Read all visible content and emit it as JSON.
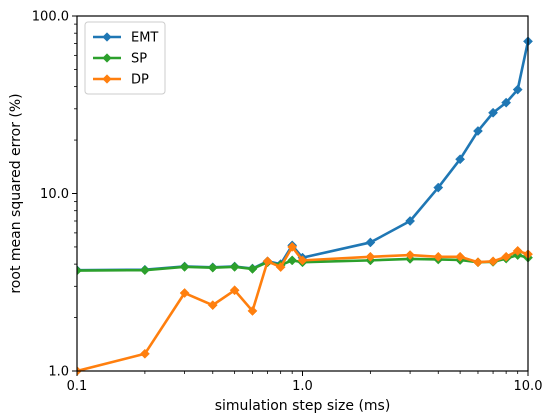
{
  "chart_data": {
    "type": "line",
    "title": "",
    "xlabel": "simulation step size (ms)",
    "ylabel": "root mean squared error (%)",
    "xscale": "log",
    "yscale": "log",
    "xlim": [
      0.1,
      10.0
    ],
    "ylim": [
      1.0,
      100.0
    ],
    "xticks": [
      0.1,
      1.0,
      10.0
    ],
    "xtick_labels": [
      "0.1",
      "1.0",
      "10.0"
    ],
    "yticks": [
      1.0,
      10.0,
      100.0
    ],
    "ytick_labels": [
      "1.0",
      "10.0",
      "100.0"
    ],
    "grid": false,
    "legend_position": "top-left",
    "series": [
      {
        "name": "EMT",
        "color": "#1f77b4",
        "marker": "diamond",
        "x": [
          0.1,
          0.2,
          0.3,
          0.4,
          0.5,
          0.6,
          0.7,
          0.8,
          0.9,
          1.0,
          2.0,
          3.0,
          4.0,
          5.0,
          6.0,
          7.0,
          8.0,
          9.0,
          10.0
        ],
        "y": [
          3.7,
          3.72,
          3.88,
          3.84,
          3.88,
          3.78,
          4.15,
          4.0,
          5.1,
          4.35,
          5.3,
          7.0,
          10.8,
          15.6,
          22.5,
          28.5,
          32.5,
          38.5,
          72.0
        ]
      },
      {
        "name": "SP",
        "color": "#2ca02c",
        "marker": "diamond",
        "x": [
          0.1,
          0.2,
          0.3,
          0.4,
          0.5,
          0.6,
          0.7,
          0.8,
          0.9,
          1.0,
          2.0,
          3.0,
          4.0,
          5.0,
          6.0,
          7.0,
          8.0,
          9.0,
          10.0
        ],
        "y": [
          3.68,
          3.7,
          3.86,
          3.82,
          3.86,
          3.76,
          4.1,
          3.95,
          4.2,
          4.1,
          4.2,
          4.28,
          4.25,
          4.22,
          4.1,
          4.12,
          4.3,
          4.5,
          4.35
        ]
      },
      {
        "name": "DP",
        "color": "#ff7f0e",
        "marker": "diamond",
        "x": [
          0.1,
          0.2,
          0.3,
          0.4,
          0.5,
          0.6,
          0.7,
          0.8,
          0.9,
          1.0,
          2.0,
          3.0,
          4.0,
          5.0,
          6.0,
          7.0,
          8.0,
          9.0,
          10.0
        ],
        "y": [
          1.0,
          1.25,
          2.75,
          2.35,
          2.85,
          2.18,
          4.15,
          3.85,
          5.0,
          4.2,
          4.4,
          4.5,
          4.4,
          4.4,
          4.1,
          4.15,
          4.4,
          4.75,
          4.55
        ]
      }
    ]
  }
}
